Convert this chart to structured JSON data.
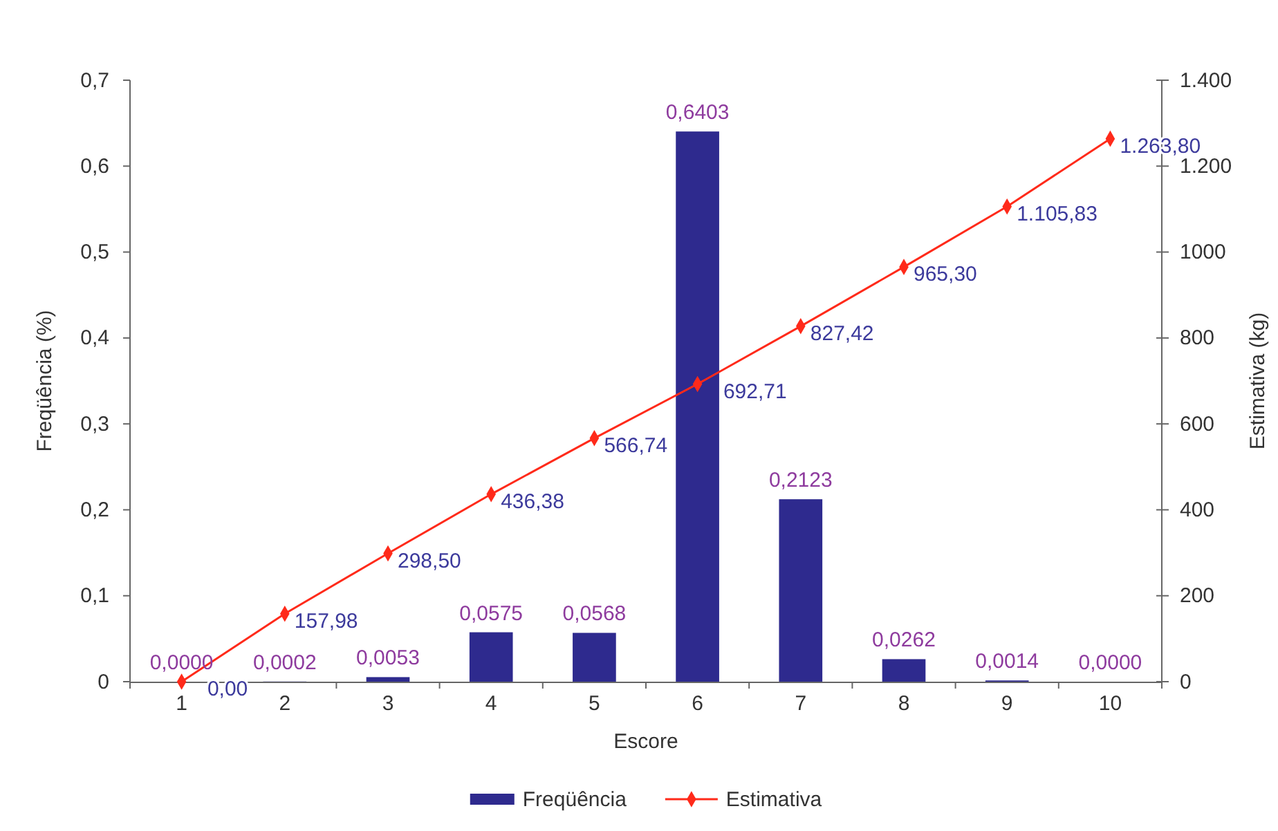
{
  "chart_data": {
    "type": "bar",
    "xlabel": "Escore",
    "ylabel": "Freqüência (%)",
    "y2label": "Estimativa (kg)",
    "categories": [
      "1",
      "2",
      "3",
      "4",
      "5",
      "6",
      "7",
      "8",
      "9",
      "10"
    ],
    "series": [
      {
        "name": "Freqüência",
        "color": "#2e2a8e",
        "values": [
          0,
          0.0002,
          0.0053,
          0.0575,
          0.0568,
          0.6403,
          0.2123,
          0.0262,
          0.0014,
          0
        ],
        "value_labels": [
          "0,0000",
          "0,0002",
          "0,0053",
          "0,0575",
          "0,0568",
          "0,6403",
          "0,2123",
          "0,0262",
          "0,0014",
          "0,0000"
        ]
      },
      {
        "name": "Estimativa",
        "type": "line",
        "axis": "y2",
        "color": "#ff2a1a",
        "values": [
          0,
          157.98,
          298.5,
          436.38,
          566.74,
          692.71,
          827.42,
          965.3,
          1105.83,
          1263.8
        ],
        "value_labels": [
          "0,00",
          "157,98",
          "298,50",
          "436,38",
          "566,74",
          "692,71",
          "827,42",
          "965,30",
          "1.105,83",
          "1.263,80"
        ]
      }
    ],
    "ylim": [
      0,
      0.7
    ],
    "yticks": [
      0,
      {
        "value": 0.1,
        "label": "0,1"
      },
      {
        "value": 0.2,
        "label": "0,2"
      },
      {
        "value": 0.3,
        "label": "0,3"
      },
      {
        "value": 0.4,
        "label": "0,4"
      },
      {
        "value": 0.5,
        "label": "0,5"
      },
      {
        "value": 0.6,
        "label": "0,6"
      },
      {
        "value": 0.7,
        "label": "0,7"
      }
    ],
    "y2lim": [
      0,
      1400
    ],
    "y2ticks": [
      0,
      200,
      400,
      600,
      800,
      1000,
      {
        "value": 1200,
        "label": "1.200"
      },
      {
        "value": 1400,
        "label": "1.400"
      }
    ],
    "legend": "bottom",
    "marker": "diamond"
  }
}
